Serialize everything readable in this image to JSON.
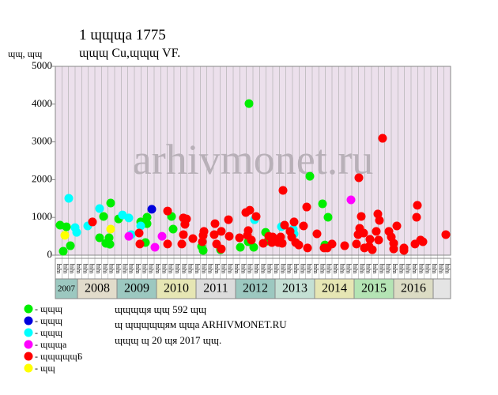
{
  "chart_data": {
    "type": "scatter",
    "title": "1 ɰɰɰa 1775",
    "subtitle": "ɰɰɰ Cu,ɰɰɰ VF.",
    "y_label": "ɰɰ, ɰɰ",
    "watermark": "arhivmonet.ru",
    "ylim": [
      0,
      5000
    ],
    "yticks": [
      0,
      1000,
      2000,
      3000,
      4000,
      5000
    ],
    "xlim": [
      2007.44,
      2017.44
    ],
    "xticks": [
      2007,
      2008,
      2009,
      2010,
      2011,
      2012,
      2013,
      2014,
      2015,
      2016
    ],
    "year_colors": [
      "#9cc8c0",
      "#e2dccb",
      "#9cc8c0",
      "#e6e6b4",
      "#dcdcdc",
      "#9cc8c0",
      "#c4e0d4",
      "#e6e6b4",
      "#b4e4b4",
      "#dcdcc4"
    ],
    "period_labels": [
      "ɰɰ",
      "ɰɰ",
      "ɰɰ",
      "ɰɰ",
      "ɰɰ",
      "ɰɰ",
      "ɰɰ",
      "ɰɰ",
      "ɰɰ",
      "ɰɰ",
      "ɰɰ",
      "ɰɰ",
      "ɰɰ",
      "ɰɰ",
      "ɰɰ",
      "ɰɰ",
      "ɰɰ",
      "ɰɰ",
      "ɰɰ",
      "ɰɰ",
      "ɰɰ",
      "ɰɰ",
      "ɰɰ",
      "ɰɰ",
      "ɰɰ",
      "ɰɰ",
      "ɰɰ",
      "ɰɰ",
      "ɰɰ",
      "ɰɰ",
      "ɰɰ",
      "ɰɰ",
      "ɰɰ",
      "ɰɰ",
      "ɰɰ",
      "ɰɰ",
      "ɰɰ",
      "ɰɰ",
      "ɰɰ",
      "ɰɰ",
      "ɰɰ",
      "ɰɰ",
      "ɰɰ",
      "ɰɰ",
      "ɰɰ",
      "ɰɰ",
      "ɰɰ",
      "ɰɰ",
      "ɰɰ",
      "ɰɰ",
      "ɰɰ",
      "ɰɰ",
      "ɰɰ",
      "ɰɰ",
      "ɰɰ",
      "ɰɰ",
      "ɰɰ",
      "ɰɰ",
      "ɰɰ",
      "ɰɰ"
    ],
    "series": [
      {
        "name": "- ɰɰɰ",
        "color": "#00ee00",
        "x": [
          2007.56,
          2007.64,
          2007.72,
          2007.82,
          2008.56,
          2008.66,
          2008.72,
          2008.8,
          2008.84,
          2008.82,
          2009.04,
          2009.6,
          2009.72,
          2009.76,
          2009.76,
          2010.38,
          2010.42,
          2011.14,
          2011.18,
          2011.62,
          2012.12,
          2012.34,
          2012.32,
          2012.46,
          2012.76,
          2012.82,
          2013.88,
          2014.2,
          2014.26,
          2014.34
        ],
        "values": [
          795,
          105,
          750,
          250,
          460,
          1025,
          315,
          460,
          1380,
          290,
          960,
          880,
          335,
          1005,
          835,
          1025,
          690,
          230,
          125,
          145,
          210,
          4015,
          355,
          210,
          605,
          375,
          2090,
          1360,
          270,
          1005
        ]
      },
      {
        "name": "- ɰɰɰ",
        "color": "#0000dd",
        "x": [
          2009.88
        ],
        "values": [
          1215
        ]
      },
      {
        "name": "- ɰɰɰ",
        "color": "#00ffff",
        "x": [
          2007.78,
          2007.94,
          2007.98,
          2008.26,
          2008.56,
          2009.14,
          2009.3,
          2009.36,
          2009.6,
          2012.48,
          2013.16,
          2013.46,
          2013.48
        ],
        "values": [
          1505,
          730,
          605,
          775,
          1235,
          1065,
          985,
          545,
          775,
          940,
          755,
          690,
          565
        ]
      },
      {
        "name": "- ɰɰɰa",
        "color": "#ff00ff",
        "x": [
          2009.3,
          2009.96,
          2010.14,
          2014.92
        ],
        "values": [
          500,
          210,
          500,
          1465
        ]
      },
      {
        "name": "- ɰɰɰɰɰБ",
        "color": "#ff0000",
        "x": [
          2008.38,
          2009.56,
          2009.58,
          2010.28,
          2010.28,
          2010.68,
          2010.76,
          2010.68,
          2010.72,
          2010.64,
          2010.92,
          2011.18,
          2011.2,
          2011.16,
          2011.48,
          2011.46,
          2011.52,
          2011.64,
          2011.64,
          2011.82,
          2011.84,
          2012.1,
          2012.26,
          2012.36,
          2012.32,
          2012.3,
          2012.4,
          2012.52,
          2012.7,
          2012.84,
          2012.94,
          2012.92,
          2013.08,
          2013.14,
          2013.2,
          2013.24,
          2013.18,
          2013.38,
          2013.42,
          2013.48,
          2013.52,
          2013.6,
          2013.72,
          2013.8,
          2013.82,
          2014.06,
          2014.24,
          2014.32,
          2014.44,
          2014.76,
          2015.06,
          2015.1,
          2015.12,
          2015.14,
          2015.18,
          2015.24,
          2015.26,
          2015.38,
          2015.46,
          2015.4,
          2015.6,
          2015.64,
          2015.62,
          2015.56,
          2015.72,
          2015.88,
          2015.94,
          2016.0,
          2016.0,
          2016.08,
          2016.26,
          2016.26,
          2016.54,
          2016.6,
          2016.58,
          2016.68,
          2016.74,
          2017.32
        ],
        "values": [
          880,
          585,
          295,
          1170,
          295,
          985,
          960,
          545,
          815,
          295,
          440,
          525,
          630,
          355,
          835,
          545,
          295,
          630,
          165,
          940,
          500,
          460,
          1130,
          1190,
          650,
          525,
          400,
          1025,
          315,
          500,
          480,
          335,
          335,
          480,
          1715,
          795,
          315,
          630,
          480,
          880,
          335,
          270,
          775,
          1275,
          190,
          565,
          190,
          190,
          295,
          250,
          295,
          545,
          2050,
          710,
          1025,
          585,
          190,
          230,
          145,
          420,
          1090,
          920,
          400,
          630,
          3095,
          630,
          480,
          315,
          165,
          775,
          190,
          125,
          295,
          1320,
          1005,
          400,
          355,
          545
        ]
      },
      {
        "name": "- ɰɰ",
        "color": "#ffff00",
        "x": [
          2007.68,
          2008.84
        ],
        "values": [
          525,
          690
        ]
      }
    ],
    "notes": [
      "ɰɰɰɰя ɰɰ 592 ɰɰ",
      "ɰ ɰɰɰɰɰям ɰɰa ARHIVMONET.RU",
      "ɰɰɰ ɰ 20 ɰя 2017 ɰɰ."
    ]
  }
}
